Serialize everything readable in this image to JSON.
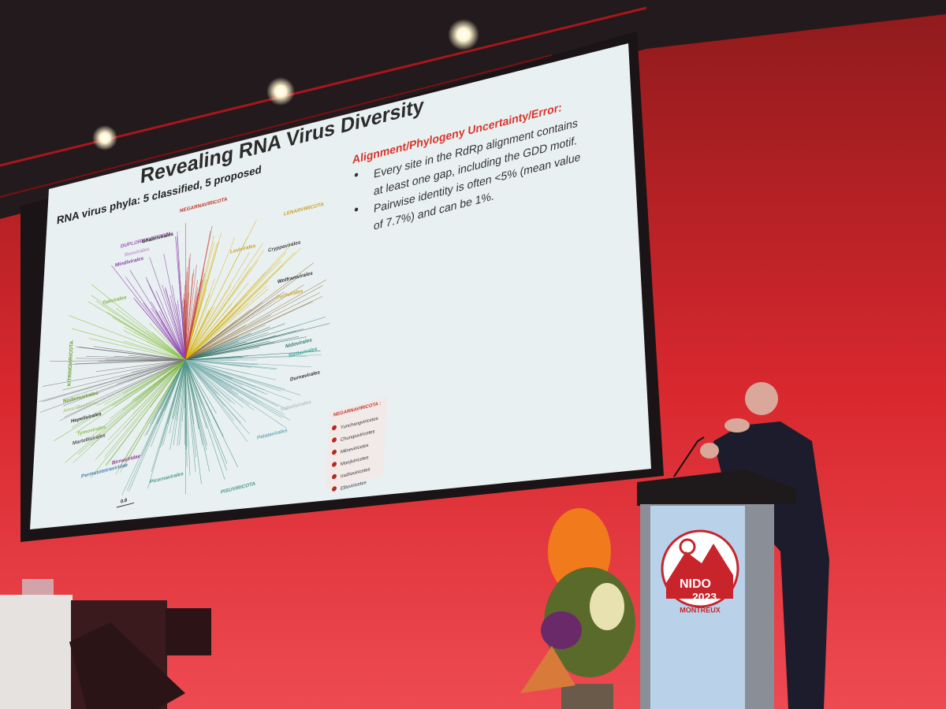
{
  "slide": {
    "title": "Revealing RNA Virus Diversity",
    "subtitle": "RNA virus phyla: 5 classified, 5 proposed",
    "heading": "Alignment/Phylogeny Uncertainty/Error:",
    "bullets": [
      [
        "Every site in the RdRp alignment contains",
        "at least one gap, including the GDD motif."
      ],
      [
        "Pairwise identity is often <5% (mean value",
        "of 7.7%) and can be 1%."
      ]
    ],
    "tree_labels": [
      "NEGARNAVIRICOTA",
      "DUPLORNAVIRICOTA",
      "Ghabrivirales",
      "Reovirales",
      "Mindivirales",
      "LENARVIRICOTA",
      "Levivirales",
      "Cryppavirales",
      "Wolframvirales",
      "Ourlivirales",
      "Tolivirales",
      "KITRINOVIRICOTA",
      "Nidovirales",
      "Stellavirales",
      "Durnavirales",
      "Sobelivirales",
      "Nodamuvirales",
      "Amarillovirales",
      "Hepelivirales",
      "Tymovirales",
      "Martellivirales",
      "Birnaviridae",
      "Permutotetraviridae",
      "Picornavirales",
      "Patatavirales",
      "PISUVIRICOTA"
    ],
    "legend": {
      "title": "NEGARNAVIRICOTA :",
      "items": [
        "Yunchangviricetes",
        "Chunqiuviricetes",
        "Milneviricetes",
        "Monjiviricetes",
        "Insthoviricetes",
        "Ellioviricetes"
      ]
    },
    "scale": "0.8"
  },
  "podium": {
    "logo": {
      "name": "NIDO",
      "year": "2023",
      "city": "MONTREUX"
    }
  }
}
